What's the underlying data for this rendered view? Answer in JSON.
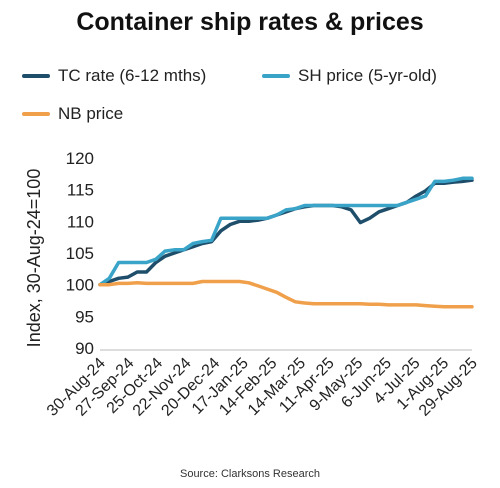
{
  "chart_data": {
    "type": "line",
    "title": "Container ship rates & prices",
    "ylabel": "Index, 30-Aug-24=100",
    "xlabel": "",
    "source": "Source: Clarksons Research",
    "ylim": [
      90,
      120
    ],
    "yticks": [
      90,
      95,
      100,
      105,
      110,
      115,
      120
    ],
    "x_tick_labels": [
      "30-Aug-24",
      "27-Sep-24",
      "25-Oct-24",
      "22-Nov-24",
      "20-Dec-24",
      "17-Jan-25",
      "14-Feb-25",
      "14-Mar-25",
      "11-Apr-25",
      "9-May-25",
      "6-Jun-25",
      "4-Jul-25",
      "1-Aug-25",
      "29-Aug-25"
    ],
    "grid": false,
    "legend_position": "top",
    "series": [
      {
        "name": "TC rate (6-12 mths)",
        "color": "#1f4e6b",
        "values": [
          100,
          100.5,
          101,
          101.2,
          102,
          102,
          103.5,
          104.5,
          105,
          105.5,
          106,
          106.5,
          106.8,
          108.5,
          109.5,
          110,
          110,
          110.2,
          110.5,
          111,
          111.5,
          112,
          112.3,
          112.5,
          112.5,
          112.5,
          112.3,
          111.8,
          109.8,
          110.5,
          111.5,
          112,
          112.5,
          113,
          114,
          114.8,
          116,
          116,
          116.2,
          116.3,
          116.5
        ]
      },
      {
        "name": "SH price (5-yr-old)",
        "color": "#3aa3c8",
        "values": [
          100,
          101,
          103.5,
          103.5,
          103.5,
          103.5,
          104,
          105.3,
          105.5,
          105.5,
          106.5,
          106.8,
          107,
          110.5,
          110.5,
          110.5,
          110.5,
          110.5,
          110.5,
          111,
          111.8,
          112,
          112.5,
          112.5,
          112.5,
          112.5,
          112.5,
          112.5,
          112.5,
          112.5,
          112.5,
          112.5,
          112.5,
          113,
          113.5,
          114,
          116.3,
          116.3,
          116.5,
          116.8,
          116.8
        ]
      },
      {
        "name": "NB price",
        "color": "#f0a04b",
        "values": [
          100,
          100,
          100.2,
          100.2,
          100.3,
          100.2,
          100.2,
          100.2,
          100.2,
          100.2,
          100.2,
          100.5,
          100.5,
          100.5,
          100.5,
          100.5,
          100.3,
          99.8,
          99.3,
          98.8,
          98,
          97.3,
          97.1,
          97,
          97,
          97,
          97,
          97,
          97,
          96.9,
          96.9,
          96.8,
          96.8,
          96.8,
          96.8,
          96.7,
          96.6,
          96.5,
          96.5,
          96.5,
          96.5
        ]
      }
    ]
  }
}
